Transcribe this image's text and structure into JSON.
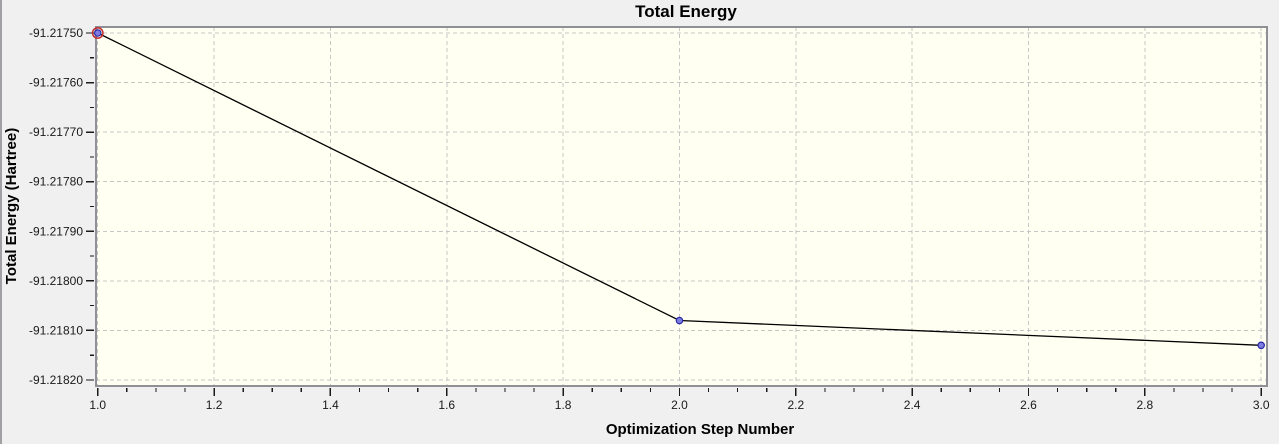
{
  "window": {
    "background_color": "#f0f0f0",
    "left_edge_color": "#a0a0a5"
  },
  "chart_data": {
    "type": "line",
    "title": "Total Energy",
    "xlabel": "Optimization Step Number",
    "ylabel": "Total Energy (Hartree)",
    "x": [
      1.0,
      2.0,
      3.0
    ],
    "y": [
      -91.2175,
      -91.21808,
      -91.21813
    ],
    "xlim": [
      0.997,
      3.01
    ],
    "ylim": [
      -91.2182121,
      -91.2174879
    ],
    "x_major_ticks": [
      1.0,
      1.2,
      1.4,
      1.6,
      1.8,
      2.0,
      2.2,
      2.4,
      2.6,
      2.8,
      3.0
    ],
    "x_tick_labels": [
      "1.0",
      "1.2",
      "1.4",
      "1.6",
      "1.8",
      "2.0",
      "2.2",
      "2.4",
      "2.6",
      "2.8",
      "3.0"
    ],
    "x_minor_step": 0.05,
    "x_minors_per_major": 4,
    "y_major_ticks": [
      -91.2175,
      -91.2176,
      -91.2177,
      -91.2178,
      -91.2179,
      -91.218,
      -91.2181,
      -91.2182
    ],
    "y_tick_labels": [
      "-91.21750",
      "-91.21760",
      "-91.21770",
      "-91.21780",
      "-91.21790",
      "-91.21800",
      "-91.21810",
      "-91.21820"
    ],
    "y_minor_step": 5e-05,
    "grid": {
      "style": "dashed",
      "color": "#c7c7c7",
      "on": true
    },
    "legend": "none",
    "plot_background": "#fffff2",
    "plot_border_color": "#8f8f96",
    "line_color": "#000000",
    "marker": {
      "shape": "circle",
      "fill": "#7d7de0",
      "stroke": "#2a2aa8"
    },
    "first_point_highlight": {
      "ring_color": "#c03030"
    },
    "tick_color": "#1a1a1a",
    "text_color": "#000000"
  }
}
